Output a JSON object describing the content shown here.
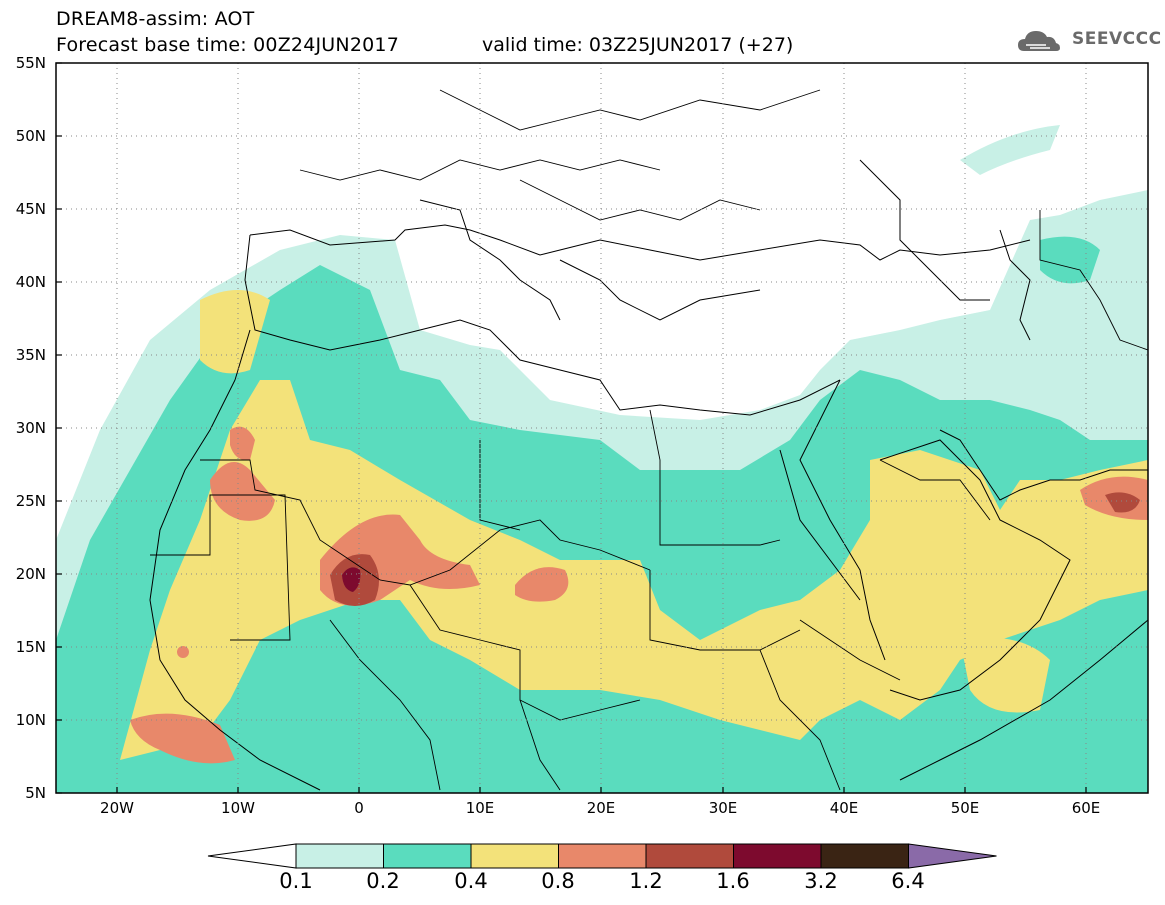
{
  "header": {
    "title": "DREAM8-assim: AOT",
    "base_time": "Forecast base time: 00Z24JUN2017",
    "valid_time": "valid time: 03Z25JUN2017 (+27)",
    "logo_text": "SEEVCCC"
  },
  "map": {
    "projection": "lat-lon",
    "lon_range": [
      -25,
      65
    ],
    "lat_range": [
      5,
      55
    ],
    "lat_labels": [
      "55N",
      "50N",
      "45N",
      "40N",
      "35N",
      "30N",
      "25N",
      "20N",
      "15N",
      "10N",
      "5N"
    ],
    "lon_labels": [
      "20W",
      "10W",
      "0",
      "10E",
      "20E",
      "30E",
      "40E",
      "50E",
      "60E"
    ],
    "graticule": "dotted",
    "field": "Aerosol Optical Thickness"
  },
  "colorbar": {
    "labels": [
      "0.1",
      "0.2",
      "0.4",
      "0.8",
      "1.2",
      "1.6",
      "3.2",
      "6.4"
    ],
    "colors": [
      "#ffffff",
      "#c8f0e6",
      "#5adcbe",
      "#f3e27a",
      "#e8886a",
      "#b04a3c",
      "#7d0a2e",
      "#3a2414",
      "#8a6aa8"
    ]
  }
}
